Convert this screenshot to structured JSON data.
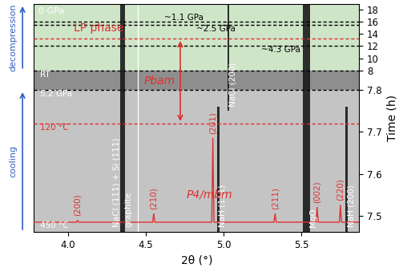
{
  "chart_data": {
    "type": "heatmap",
    "x_label": "2θ (°)",
    "y_label": "Time (h)",
    "xlim": [
      3.78,
      5.87
    ],
    "xticks": [
      4.0,
      4.5,
      5.0,
      5.5
    ],
    "ylim": [
      7.462,
      18.9
    ],
    "yticks": [
      7.5,
      7.6,
      7.7,
      7.8,
      8,
      10,
      12,
      14,
      16,
      18
    ],
    "regions": [
      {
        "t_start": 7.462,
        "t_end": 7.8,
        "color": "#c4c4c4"
      },
      {
        "t_start": 7.8,
        "t_end": 8,
        "color": "#8e8e8e"
      },
      {
        "t_start": 8,
        "t_end": 18.9,
        "color": "#cfe5c8"
      }
    ],
    "reflections": [
      {
        "label": [
          "NaCl (111) + Si (111)",
          "graphite"
        ],
        "x": 4.35,
        "width": 0.03,
        "t_start": 7.462,
        "t_end": 18.9,
        "color": "white"
      },
      {
        "label": [
          "NaH (111)"
        ],
        "x": 4.965,
        "width": 0.012,
        "t_start": 7.462,
        "t_end": 7.76,
        "color": "white"
      },
      {
        "label": [
          "NaCl (200)"
        ],
        "x": 5.03,
        "width": 0.014,
        "t_start": 7.75,
        "t_end": 18.9,
        "color": "white"
      },
      {
        "label": [
          "MgO"
        ],
        "x": 5.53,
        "width": 0.045,
        "t_start": 7.462,
        "t_end": 18.9,
        "color": "white"
      },
      {
        "label": [
          "NaH (200)"
        ],
        "x": 5.79,
        "width": 0.012,
        "t_start": 7.462,
        "t_end": 7.76,
        "color": "white"
      }
    ],
    "cursor_x": 4.45,
    "events": [
      {
        "t": 16.0,
        "label": "~1.1 GPa",
        "color": "black"
      },
      {
        "t": 15.5,
        "label": "~2.5 GPa",
        "color": "black"
      },
      {
        "t": 13.2,
        "color": "#e03030"
      },
      {
        "t": 12.0,
        "label": "~4.3 GPa",
        "color": "black"
      },
      {
        "t": 8.0,
        "label": "RT",
        "color": "black"
      },
      {
        "t": 7.8,
        "label": "5.2 GPa",
        "color": "black"
      },
      {
        "t": 7.72,
        "label": "120 °C",
        "color": "#e03030"
      }
    ],
    "reference_pattern": {
      "baseline": 7.485,
      "color": "#e03030",
      "peaks": [
        {
          "label": "(200)",
          "x": 4.06,
          "height": 0.004
        },
        {
          "label": "(210)",
          "x": 4.55,
          "height": 0.02
        },
        {
          "label": "(201)",
          "x": 4.93,
          "height": 0.2
        },
        {
          "label": "(211)",
          "x": 5.33,
          "height": 0.02
        },
        {
          "label": "(002)",
          "x": 5.6,
          "height": 0.035
        },
        {
          "label": "(220)",
          "x": 5.75,
          "height": 0.04
        }
      ]
    },
    "annotations": {
      "top": "0 GPa",
      "lp": "LP phase",
      "pbam": "Pbam",
      "p4": "P4/mbm",
      "start": "450 °C",
      "decompression": "decompression",
      "cooling": "cooling"
    }
  }
}
